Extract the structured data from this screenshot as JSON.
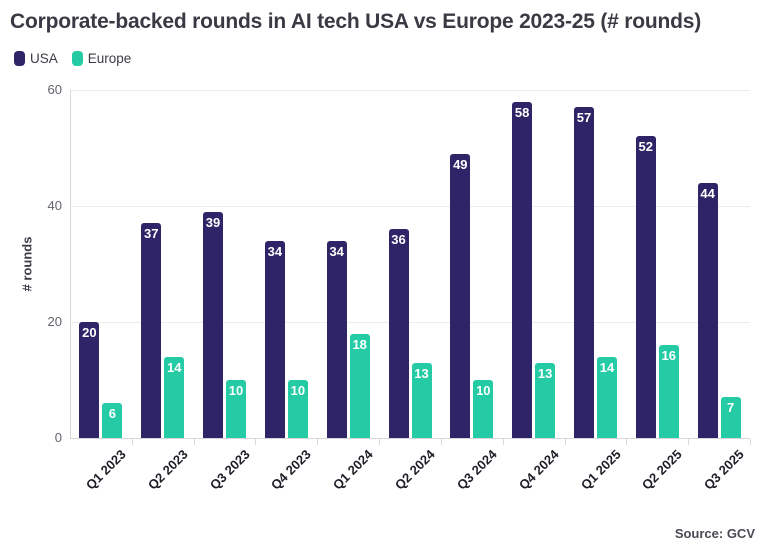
{
  "title": "Corporate-backed rounds in AI tech USA vs Europe 2023-25 (# rounds)",
  "source": "Source: GCV",
  "colors": {
    "usa": "#2E2467",
    "europe": "#25CBA5",
    "grid": "#ececef",
    "axis": "#d7d7db",
    "title_text": "#3a3a44",
    "value_label_text": "#ffffff"
  },
  "chart_data": {
    "type": "bar",
    "title": "Corporate-backed rounds in AI tech USA vs Europe 2023-25 (# rounds)",
    "categories": [
      "Q1 2023",
      "Q2 2023",
      "Q3 2023",
      "Q4 2023",
      "Q1 2024",
      "Q2 2024",
      "Q3 2024",
      "Q4 2024",
      "Q1 2025",
      "Q2 2025",
      "Q3 2025"
    ],
    "series": [
      {
        "name": "USA",
        "color": "#2E2467",
        "values": [
          20,
          37,
          39,
          34,
          34,
          36,
          49,
          58,
          57,
          52,
          44
        ]
      },
      {
        "name": "Europe",
        "color": "#25CBA5",
        "values": [
          6,
          14,
          10,
          10,
          18,
          13,
          10,
          13,
          14,
          16,
          7
        ]
      }
    ],
    "xlabel": "",
    "ylabel": "# rounds",
    "yticks": [
      0,
      20,
      40,
      60
    ],
    "ylim": [
      0,
      60
    ],
    "grid": true,
    "value_labels": true,
    "legend_position": "top-left",
    "caption": "Source: GCV"
  }
}
